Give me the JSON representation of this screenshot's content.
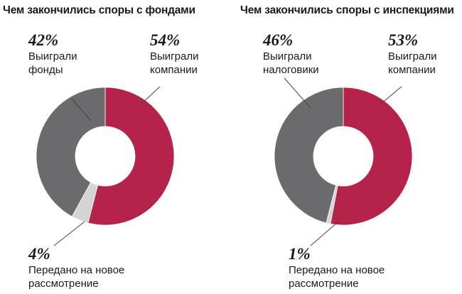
{
  "chart_data": [
    {
      "type": "pie",
      "title": "Чем закончились споры с фондами",
      "slices": [
        {
          "label": "Выиграли компании",
          "pct_text": "54%",
          "value": 54,
          "color": "#b5224a"
        },
        {
          "label": "Передано на новое рассмотрение",
          "pct_text": "4%",
          "value": 4,
          "color": "#d4d4d4"
        },
        {
          "label": "Выиграли фонды",
          "pct_text": "42%",
          "value": 42,
          "color": "#6b6b6d"
        }
      ]
    },
    {
      "type": "pie",
      "title": "Чем закончились споры с инспекциями",
      "slices": [
        {
          "label": "Выиграли компании",
          "pct_text": "53%",
          "value": 53,
          "color": "#b5224a"
        },
        {
          "label": "Передано на новое рассмотрение",
          "pct_text": "1%",
          "value": 1,
          "color": "#d4d4d4"
        },
        {
          "label": "Выиграли налоговики",
          "pct_text": "46%",
          "value": 46,
          "color": "#6b6b6d"
        }
      ]
    }
  ]
}
